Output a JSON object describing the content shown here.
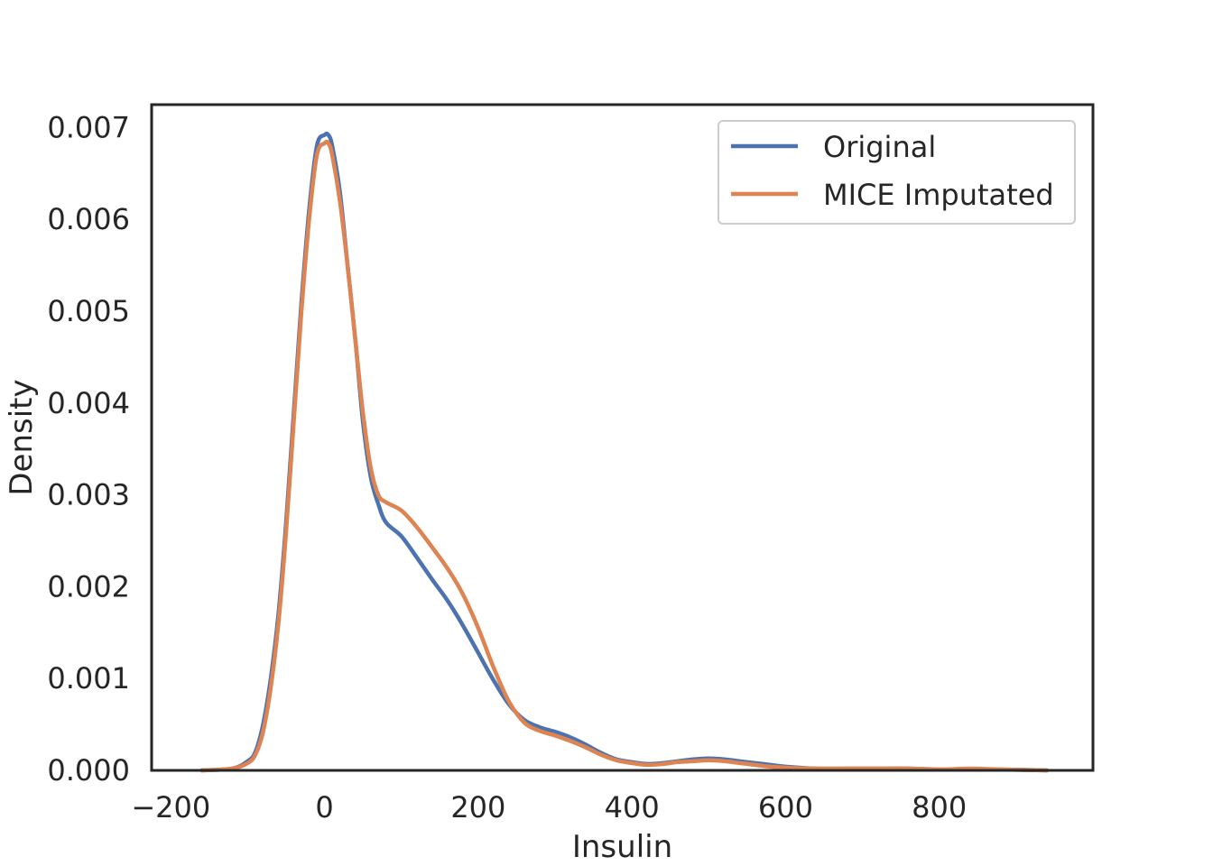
{
  "chart_data": {
    "type": "line",
    "title": "",
    "xlabel": "Insulin",
    "ylabel": "Density",
    "xlim": [
      -225,
      1000
    ],
    "ylim": [
      0,
      0.00725
    ],
    "xticks": [
      -200,
      0,
      200,
      400,
      600,
      800
    ],
    "xtick_labels": [
      "−200",
      "0",
      "200",
      "400",
      "600",
      "800"
    ],
    "yticks": [
      0,
      0.001,
      0.002,
      0.003,
      0.004,
      0.005,
      0.006,
      0.007
    ],
    "ytick_labels": [
      "0.000",
      "0.001",
      "0.002",
      "0.003",
      "0.004",
      "0.005",
      "0.006",
      "0.007"
    ],
    "grid": false,
    "legend_position": "top-right",
    "series": [
      {
        "name": "Original",
        "color": "#4c72b0",
        "x": [
          -160,
          -120,
          -100,
          -90,
          -80,
          -70,
          -60,
          -50,
          -40,
          -30,
          -20,
          -10,
          0,
          5,
          10,
          20,
          30,
          40,
          50,
          60,
          70,
          80,
          100,
          120,
          140,
          160,
          180,
          200,
          220,
          240,
          260,
          280,
          300,
          320,
          340,
          360,
          380,
          400,
          420,
          440,
          460,
          480,
          500,
          520,
          540,
          560,
          580,
          600,
          640,
          680,
          720,
          760,
          800,
          840,
          880,
          940
        ],
        "values": [
          0,
          2e-05,
          0.0001,
          0.0002,
          0.0005,
          0.001,
          0.0017,
          0.0027,
          0.0039,
          0.0051,
          0.0061,
          0.0068,
          0.00692,
          0.00692,
          0.0068,
          0.0063,
          0.0055,
          0.0047,
          0.0038,
          0.0032,
          0.0029,
          0.0027,
          0.00255,
          0.00232,
          0.00208,
          0.00185,
          0.00158,
          0.00128,
          0.00098,
          0.00072,
          0.00055,
          0.00047,
          0.00042,
          0.00036,
          0.00028,
          0.00019,
          0.00012,
          9e-05,
          7e-05,
          8e-05,
          0.0001,
          0.00012,
          0.00013,
          0.00012,
          0.0001,
          8e-05,
          6e-05,
          4e-05,
          2e-05,
          2e-05,
          2e-05,
          2e-05,
          1e-05,
          1e-05,
          1e-05,
          0
        ]
      },
      {
        "name": "MICE Imputated",
        "color": "#dd8452",
        "x": [
          -160,
          -120,
          -100,
          -90,
          -80,
          -70,
          -60,
          -50,
          -40,
          -30,
          -20,
          -10,
          0,
          5,
          10,
          20,
          30,
          40,
          50,
          60,
          70,
          80,
          100,
          120,
          140,
          160,
          180,
          200,
          220,
          240,
          260,
          280,
          300,
          320,
          340,
          360,
          380,
          400,
          420,
          440,
          460,
          480,
          500,
          520,
          540,
          560,
          580,
          600,
          640,
          680,
          720,
          760,
          800,
          840,
          880,
          940
        ],
        "values": [
          0,
          2e-05,
          8e-05,
          0.00017,
          0.00042,
          0.0009,
          0.0016,
          0.0026,
          0.0038,
          0.005,
          0.006,
          0.0067,
          0.00683,
          0.00683,
          0.0067,
          0.0062,
          0.0055,
          0.0047,
          0.0039,
          0.0033,
          0.003,
          0.00292,
          0.00283,
          0.00265,
          0.00243,
          0.0022,
          0.00192,
          0.00155,
          0.00112,
          0.00075,
          0.00052,
          0.00043,
          0.00038,
          0.00032,
          0.00025,
          0.00017,
          0.00011,
          8e-05,
          6e-05,
          7e-05,
          9e-05,
          0.0001,
          0.00011,
          0.0001,
          8e-05,
          6e-05,
          4e-05,
          3e-05,
          2e-05,
          2e-05,
          2e-05,
          2e-05,
          1e-05,
          2e-05,
          1e-05,
          0
        ]
      }
    ]
  }
}
